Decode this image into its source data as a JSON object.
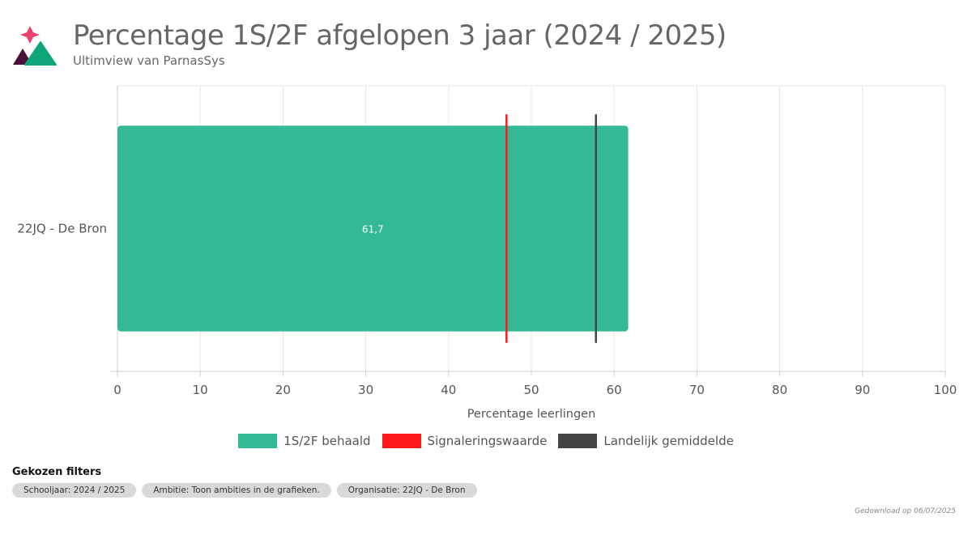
{
  "header": {
    "title": "Percentage 1S/2F afgelopen 3 jaar (2024 / 2025)",
    "subtitle": "Ultimview van ParnasSys"
  },
  "chart_data": {
    "type": "bar",
    "orientation": "horizontal",
    "categories": [
      "22JQ - De Bron"
    ],
    "series": [
      {
        "name": "1S/2F behaald",
        "values": [
          61.7
        ],
        "labels": [
          "61,7"
        ],
        "color": "#33b995"
      }
    ],
    "reference_lines": [
      {
        "name": "Signaleringswaarde",
        "value": 47,
        "color": "#ff1a1a"
      },
      {
        "name": "Landelijk gemiddelde",
        "value": 57.8,
        "color": "#444444"
      }
    ],
    "xlabel": "Percentage leerlingen",
    "xlim": [
      0,
      100
    ],
    "xticks": [
      "0",
      "10",
      "20",
      "30",
      "40",
      "50",
      "60",
      "70",
      "80",
      "90",
      "100"
    ],
    "grid": true,
    "legend": "bottom"
  },
  "filters": {
    "heading": "Gekozen filters",
    "chips": [
      "Schooljaar: 2024 / 2025",
      "Ambitie: Toon ambities in de grafieken.",
      "Organisatie: 22JQ - De Bron"
    ]
  },
  "footer": {
    "download": "Gedownload op 06/07/2025"
  }
}
